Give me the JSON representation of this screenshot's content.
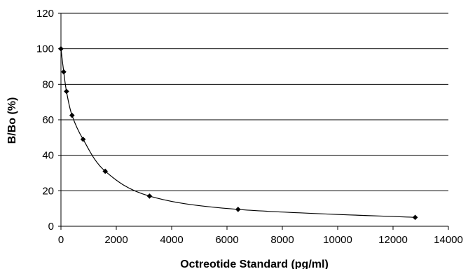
{
  "chart_data": {
    "type": "scatter",
    "xlabel": "Octreotide Standard (pg/ml)",
    "ylabel": "B/Bo (%)",
    "xlim": [
      0,
      14000
    ],
    "ylim": [
      0,
      120
    ],
    "x_ticks": [
      0,
      2000,
      4000,
      6000,
      8000,
      10000,
      12000,
      14000
    ],
    "y_ticks": [
      0,
      20,
      40,
      60,
      80,
      100,
      120
    ],
    "grid": "horizontal",
    "legend": "none",
    "series": [
      {
        "marker": "diamond",
        "line": "smooth",
        "color": "#000000",
        "points": [
          {
            "x": 0,
            "y": 100
          },
          {
            "x": 100,
            "y": 87
          },
          {
            "x": 200,
            "y": 76
          },
          {
            "x": 400,
            "y": 62.5
          },
          {
            "x": 800,
            "y": 49
          },
          {
            "x": 1600,
            "y": 31
          },
          {
            "x": 3200,
            "y": 17
          },
          {
            "x": 6400,
            "y": 9.5
          },
          {
            "x": 12800,
            "y": 5
          }
        ]
      }
    ]
  }
}
